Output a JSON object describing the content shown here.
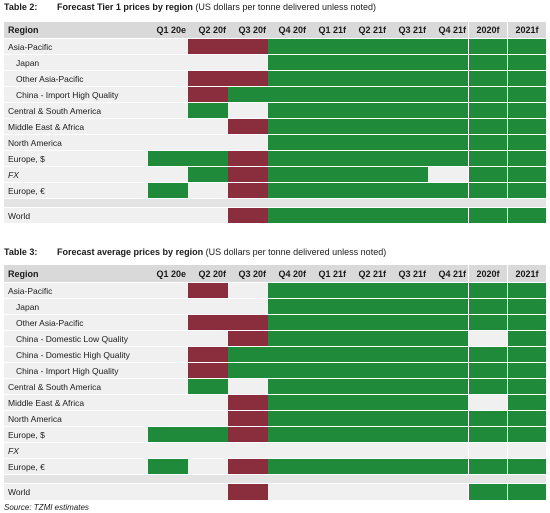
{
  "tables": [
    {
      "number": "Table 2:",
      "title_bold": "Forecast Tier 1 prices by region",
      "title_rest": "(US dollars per tonne delivered unless noted)",
      "columns": [
        "Region",
        "Q1 20e",
        "Q2 20f",
        "Q3 20f",
        "Q4 20f",
        "Q1 21f",
        "Q2 21f",
        "Q3 21f",
        "Q4 21f",
        "2020f",
        "2021f"
      ],
      "rows": [
        {
          "label": "Asia-Pacific",
          "indent": false,
          "italic": false,
          "cells": [
            "w",
            "r",
            "r",
            "g",
            "g",
            "g",
            "g",
            "g",
            "g",
            "g"
          ]
        },
        {
          "label": "Japan",
          "indent": true,
          "italic": false,
          "cells": [
            "w",
            "w",
            "w",
            "g",
            "g",
            "g",
            "g",
            "g",
            "g",
            "g"
          ]
        },
        {
          "label": "Other Asia-Pacific",
          "indent": true,
          "italic": false,
          "cells": [
            "w",
            "r",
            "r",
            "g",
            "g",
            "g",
            "g",
            "g",
            "g",
            "g"
          ]
        },
        {
          "label": "China - Import High Quality",
          "indent": true,
          "italic": false,
          "cells": [
            "w",
            "r",
            "g",
            "g",
            "g",
            "g",
            "g",
            "g",
            "g",
            "g"
          ]
        },
        {
          "label": "Central & South America",
          "indent": false,
          "italic": false,
          "cells": [
            "w",
            "g",
            "w",
            "g",
            "g",
            "g",
            "g",
            "g",
            "g",
            "g"
          ]
        },
        {
          "label": "Middle East & Africa",
          "indent": false,
          "italic": false,
          "cells": [
            "w",
            "w",
            "r",
            "g",
            "g",
            "g",
            "g",
            "g",
            "g",
            "g"
          ]
        },
        {
          "label": "North America",
          "indent": false,
          "italic": false,
          "cells": [
            "w",
            "w",
            "w",
            "g",
            "g",
            "g",
            "g",
            "g",
            "g",
            "g"
          ]
        },
        {
          "label": "Europe, $",
          "indent": false,
          "italic": false,
          "cells": [
            "g",
            "g",
            "r",
            "g",
            "g",
            "g",
            "g",
            "g",
            "g",
            "g"
          ]
        },
        {
          "label": "FX",
          "indent": false,
          "italic": true,
          "cells": [
            "w",
            "g",
            "r",
            "g",
            "g",
            "g",
            "g",
            "w",
            "g",
            "g"
          ]
        },
        {
          "label": "Europe, €",
          "indent": false,
          "italic": false,
          "cells": [
            "g",
            "w",
            "r",
            "g",
            "g",
            "g",
            "g",
            "g",
            "g",
            "g"
          ]
        }
      ],
      "world": {
        "label": "World",
        "cells": [
          "w",
          "w",
          "r",
          "g",
          "g",
          "g",
          "g",
          "g",
          "g",
          "g"
        ]
      }
    },
    {
      "number": "Table 3:",
      "title_bold": "Forecast average prices by region",
      "title_rest": "(US dollars per tonne delivered unless noted)",
      "columns": [
        "Region",
        "Q1 20e",
        "Q2 20f",
        "Q3 20f",
        "Q4 20f",
        "Q1 21f",
        "Q2 21f",
        "Q3 21f",
        "Q4 21f",
        "2020f",
        "2021f"
      ],
      "rows": [
        {
          "label": "Asia-Pacific",
          "indent": false,
          "italic": false,
          "cells": [
            "w",
            "r",
            "w",
            "g",
            "g",
            "g",
            "g",
            "g",
            "g",
            "g"
          ]
        },
        {
          "label": "Japan",
          "indent": true,
          "italic": false,
          "cells": [
            "w",
            "w",
            "w",
            "g",
            "g",
            "g",
            "g",
            "g",
            "g",
            "g"
          ]
        },
        {
          "label": "Other Asia-Pacific",
          "indent": true,
          "italic": false,
          "cells": [
            "w",
            "r",
            "r",
            "g",
            "g",
            "g",
            "g",
            "g",
            "g",
            "g"
          ]
        },
        {
          "label": "China - Domestic Low Quality",
          "indent": true,
          "italic": false,
          "cells": [
            "w",
            "w",
            "r",
            "g",
            "g",
            "g",
            "g",
            "g",
            "w",
            "g"
          ]
        },
        {
          "label": "China - Domestic High Quality",
          "indent": true,
          "italic": false,
          "cells": [
            "w",
            "r",
            "g",
            "g",
            "g",
            "g",
            "g",
            "g",
            "g",
            "g"
          ]
        },
        {
          "label": "China - Import High Quality",
          "indent": true,
          "italic": false,
          "cells": [
            "w",
            "r",
            "g",
            "g",
            "g",
            "g",
            "g",
            "g",
            "g",
            "g"
          ]
        },
        {
          "label": "Central & South America",
          "indent": false,
          "italic": false,
          "cells": [
            "w",
            "g",
            "w",
            "g",
            "g",
            "g",
            "g",
            "g",
            "g",
            "g"
          ]
        },
        {
          "label": "Middle East & Africa",
          "indent": false,
          "italic": false,
          "cells": [
            "w",
            "w",
            "r",
            "g",
            "g",
            "g",
            "g",
            "g",
            "w",
            "g"
          ]
        },
        {
          "label": "North America",
          "indent": false,
          "italic": false,
          "cells": [
            "w",
            "w",
            "r",
            "g",
            "g",
            "g",
            "g",
            "g",
            "g",
            "g"
          ]
        },
        {
          "label": "Europe, $",
          "indent": false,
          "italic": false,
          "cells": [
            "g",
            "g",
            "r",
            "g",
            "g",
            "g",
            "g",
            "g",
            "g",
            "g"
          ]
        },
        {
          "label": "FX",
          "indent": false,
          "italic": true,
          "cells": [
            "w",
            "w",
            "w",
            "w",
            "w",
            "w",
            "w",
            "w",
            "w",
            "w"
          ]
        },
        {
          "label": "Europe, €",
          "indent": false,
          "italic": false,
          "cells": [
            "g",
            "w",
            "r",
            "g",
            "g",
            "g",
            "g",
            "g",
            "g",
            "g"
          ]
        }
      ],
      "world": {
        "label": "World",
        "cells": [
          "w",
          "w",
          "r",
          "w",
          "w",
          "w",
          "w",
          "w",
          "g",
          "g"
        ]
      }
    }
  ],
  "source": "Source: TZMI estimates",
  "colors": {
    "green": "#1f8a3a",
    "red": "#8a2d3c",
    "blank": "#f0f0f0"
  }
}
